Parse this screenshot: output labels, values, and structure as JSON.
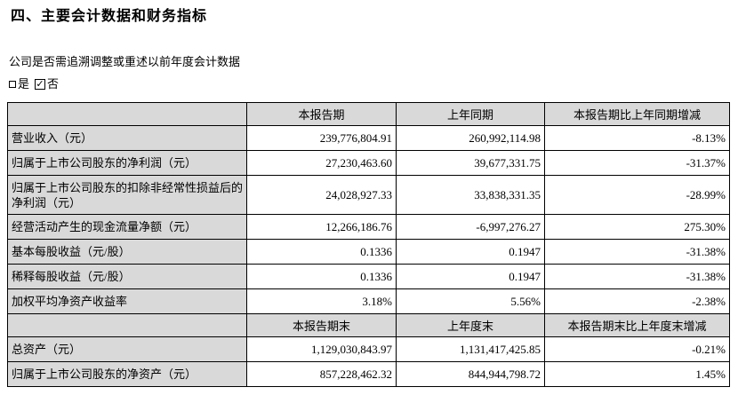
{
  "page": {
    "title": "四、主要会计数据和财务指标",
    "question": "公司是否需追溯调整或重述以前年度会计数据",
    "option_yes": "是",
    "option_no": "否",
    "check_mark": "✓",
    "colors": {
      "header_fill": "#d9d9d9",
      "border": "#000000",
      "text": "#000000"
    }
  },
  "table": {
    "headers1": [
      "",
      "本报告期",
      "上年同期",
      "本报告期比上年同期增减"
    ],
    "rows1": [
      {
        "label": "营业收入（元）",
        "current": "239,776,804.91",
        "prior": "260,992,114.98",
        "change": "-8.13%"
      },
      {
        "label": "归属于上市公司股东的净利润（元）",
        "current": "27,230,463.60",
        "prior": "39,677,331.75",
        "change": "-31.37%"
      },
      {
        "label": "归属于上市公司股东的扣除非经常性损益后的净利润（元）",
        "current": "24,028,927.33",
        "prior": "33,838,331.35",
        "change": "-28.99%"
      },
      {
        "label": "经营活动产生的现金流量净额（元）",
        "current": "12,266,186.76",
        "prior": "-6,997,276.27",
        "change": "275.30%"
      },
      {
        "label": "基本每股收益（元/股）",
        "current": "0.1336",
        "prior": "0.1947",
        "change": "-31.38%"
      },
      {
        "label": "稀释每股收益（元/股）",
        "current": "0.1336",
        "prior": "0.1947",
        "change": "-31.38%"
      },
      {
        "label": "加权平均净资产收益率",
        "current": "3.18%",
        "prior": "5.56%",
        "change": "-2.38%"
      }
    ],
    "headers2": [
      "",
      "本报告期末",
      "上年度末",
      "本报告期末比上年度末增减"
    ],
    "rows2": [
      {
        "label": "总资产（元）",
        "current": "1,129,030,843.97",
        "prior": "1,131,417,425.85",
        "change": "-0.21%"
      },
      {
        "label": "归属于上市公司股东的净资产（元）",
        "current": "857,228,462.32",
        "prior": "844,944,798.72",
        "change": "1.45%"
      }
    ]
  }
}
